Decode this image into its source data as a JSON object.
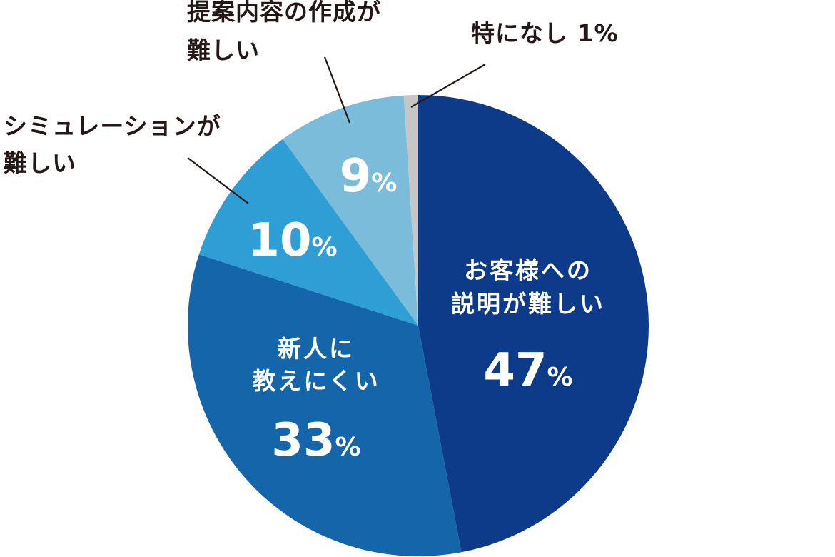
{
  "chart_data": {
    "type": "pie",
    "start_angle_deg": 0,
    "direction": "clockwise",
    "slices": [
      {
        "label_lines": [
          "お客様への",
          "説明が難しい"
        ],
        "value": 47,
        "value_text": "47",
        "color": "#0e3a8a",
        "label_position": "inside"
      },
      {
        "label_lines": [
          "新人に",
          "教えにくい"
        ],
        "value": 33,
        "value_text": "33",
        "color": "#1565aa",
        "label_position": "inside"
      },
      {
        "label_lines": [
          "シミュレーションが",
          "難しい"
        ],
        "value": 10,
        "value_text": "10",
        "color": "#2e9ed4",
        "label_position": "outside"
      },
      {
        "label_lines": [
          "提案内容の作成が",
          "難しい"
        ],
        "value": 9,
        "value_text": "9",
        "color": "#7bbcdb",
        "label_position": "outside"
      },
      {
        "label_lines": [
          "特になし 1%"
        ],
        "value": 1,
        "value_text": "",
        "color": "#c6c6c6",
        "label_position": "outside"
      }
    ],
    "percent_sign": "%"
  }
}
